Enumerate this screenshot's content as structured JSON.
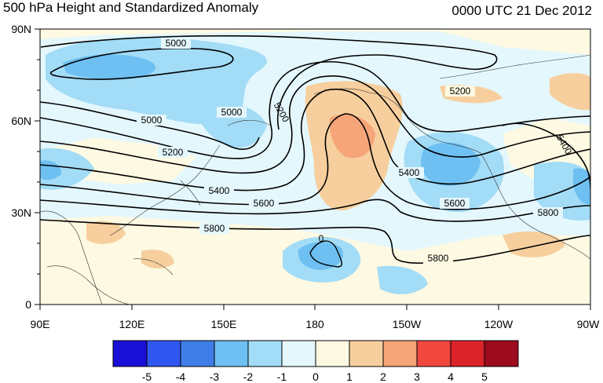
{
  "title": "500 hPa Height and Standardized Anomaly",
  "datetime": "0000 UTC 21 Dec 2012",
  "axes": {
    "lat_labels": [
      "90N",
      "60N",
      "30N",
      "0"
    ],
    "lon_labels": [
      "90E",
      "120E",
      "150E",
      "180",
      "150W",
      "120W",
      "90W"
    ]
  },
  "contour_labels": [
    "5000",
    "5000",
    "5000",
    "5200",
    "5200",
    "5400",
    "5400",
    "5600",
    "5600",
    "5800",
    "5800",
    "5800",
    "5200",
    "5400",
    "0"
  ],
  "colorbar": {
    "labels": [
      "-5",
      "-4",
      "-3",
      "-2",
      "-1",
      "0",
      "1",
      "2",
      "3",
      "4",
      "5"
    ],
    "colors": [
      "#1a0fd6",
      "#2f57f0",
      "#3f7ee8",
      "#6ec0f2",
      "#a3dcf6",
      "#e4f7fd",
      "#fdf9e2",
      "#f7cf9e",
      "#f5a578",
      "#f0473f",
      "#db2329",
      "#9c0b1e"
    ]
  }
}
